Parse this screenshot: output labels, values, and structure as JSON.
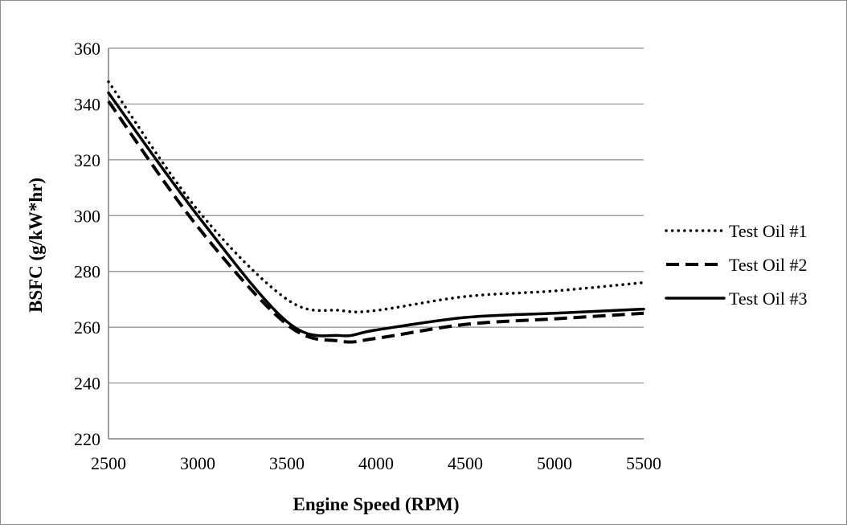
{
  "chart_data": {
    "type": "line",
    "xlabel": "Engine Speed (RPM)",
    "ylabel": "BSFC (g/kW*hr)",
    "xlim": [
      2500,
      5500
    ],
    "ylim": [
      220,
      360
    ],
    "xticks": [
      2500,
      3000,
      3500,
      4000,
      4500,
      5000,
      5500
    ],
    "yticks": [
      220,
      240,
      260,
      280,
      300,
      320,
      340,
      360
    ],
    "grid": "horizontal",
    "legend_position": "right",
    "series": [
      {
        "name": "Test Oil #1",
        "style": "dotted",
        "color": "#000000",
        "x": [
          2500,
          3000,
          3500,
          3800,
          4000,
          4500,
          5000,
          5500
        ],
        "y": [
          348,
          302,
          270,
          266,
          266,
          271,
          273,
          276
        ]
      },
      {
        "name": "Test Oil #2",
        "style": "dashed",
        "color": "#000000",
        "x": [
          2500,
          3000,
          3500,
          3800,
          4000,
          4500,
          5000,
          5500
        ],
        "y": [
          341,
          296,
          261,
          255,
          256,
          261,
          263,
          265
        ]
      },
      {
        "name": "Test Oil #3",
        "style": "solid",
        "color": "#000000",
        "x": [
          2500,
          3000,
          3500,
          3800,
          4000,
          4500,
          5000,
          5500
        ],
        "y": [
          344,
          300,
          262,
          257,
          259,
          263.5,
          265,
          266.5
        ]
      }
    ]
  }
}
